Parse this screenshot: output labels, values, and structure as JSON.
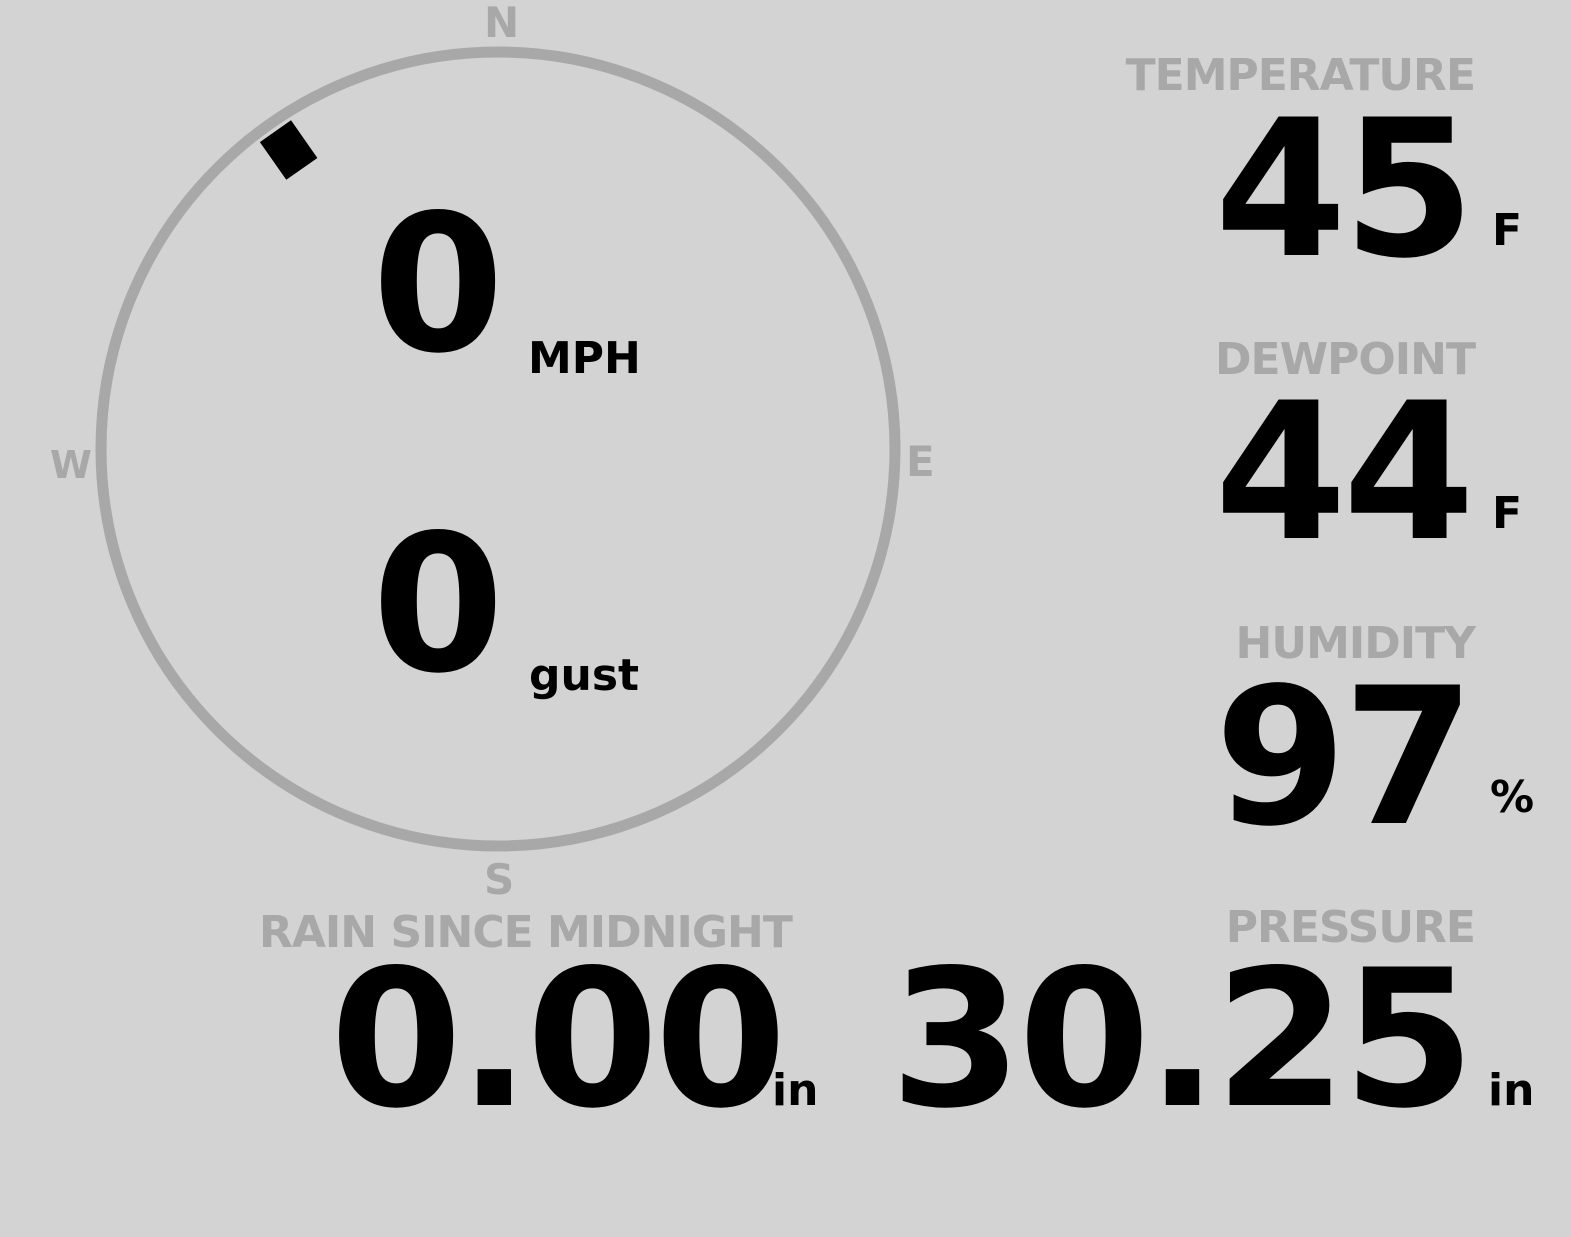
{
  "compass": {
    "north": "N",
    "south": "S",
    "east": "E",
    "west": "W",
    "wind_direction_deg": 325,
    "ring_color": "#a8a8a8"
  },
  "wind": {
    "speed": "0",
    "speed_unit": "MPH",
    "gust": "0",
    "gust_unit": "gust"
  },
  "temperature": {
    "label": "TEMPERATURE",
    "value": "45",
    "unit": "F"
  },
  "dewpoint": {
    "label": "DEWPOINT",
    "value": "44",
    "unit": "F"
  },
  "humidity": {
    "label": "HUMIDITY",
    "value": "97",
    "unit": "%"
  },
  "rain": {
    "label": "RAIN SINCE MIDNIGHT",
    "value": "0.00",
    "unit": "in"
  },
  "pressure": {
    "label": "PRESSURE",
    "value": "30.25",
    "unit": "in"
  },
  "colors": {
    "background": "#d3d3d3",
    "label": "#a8a8a8",
    "value": "#000000"
  }
}
